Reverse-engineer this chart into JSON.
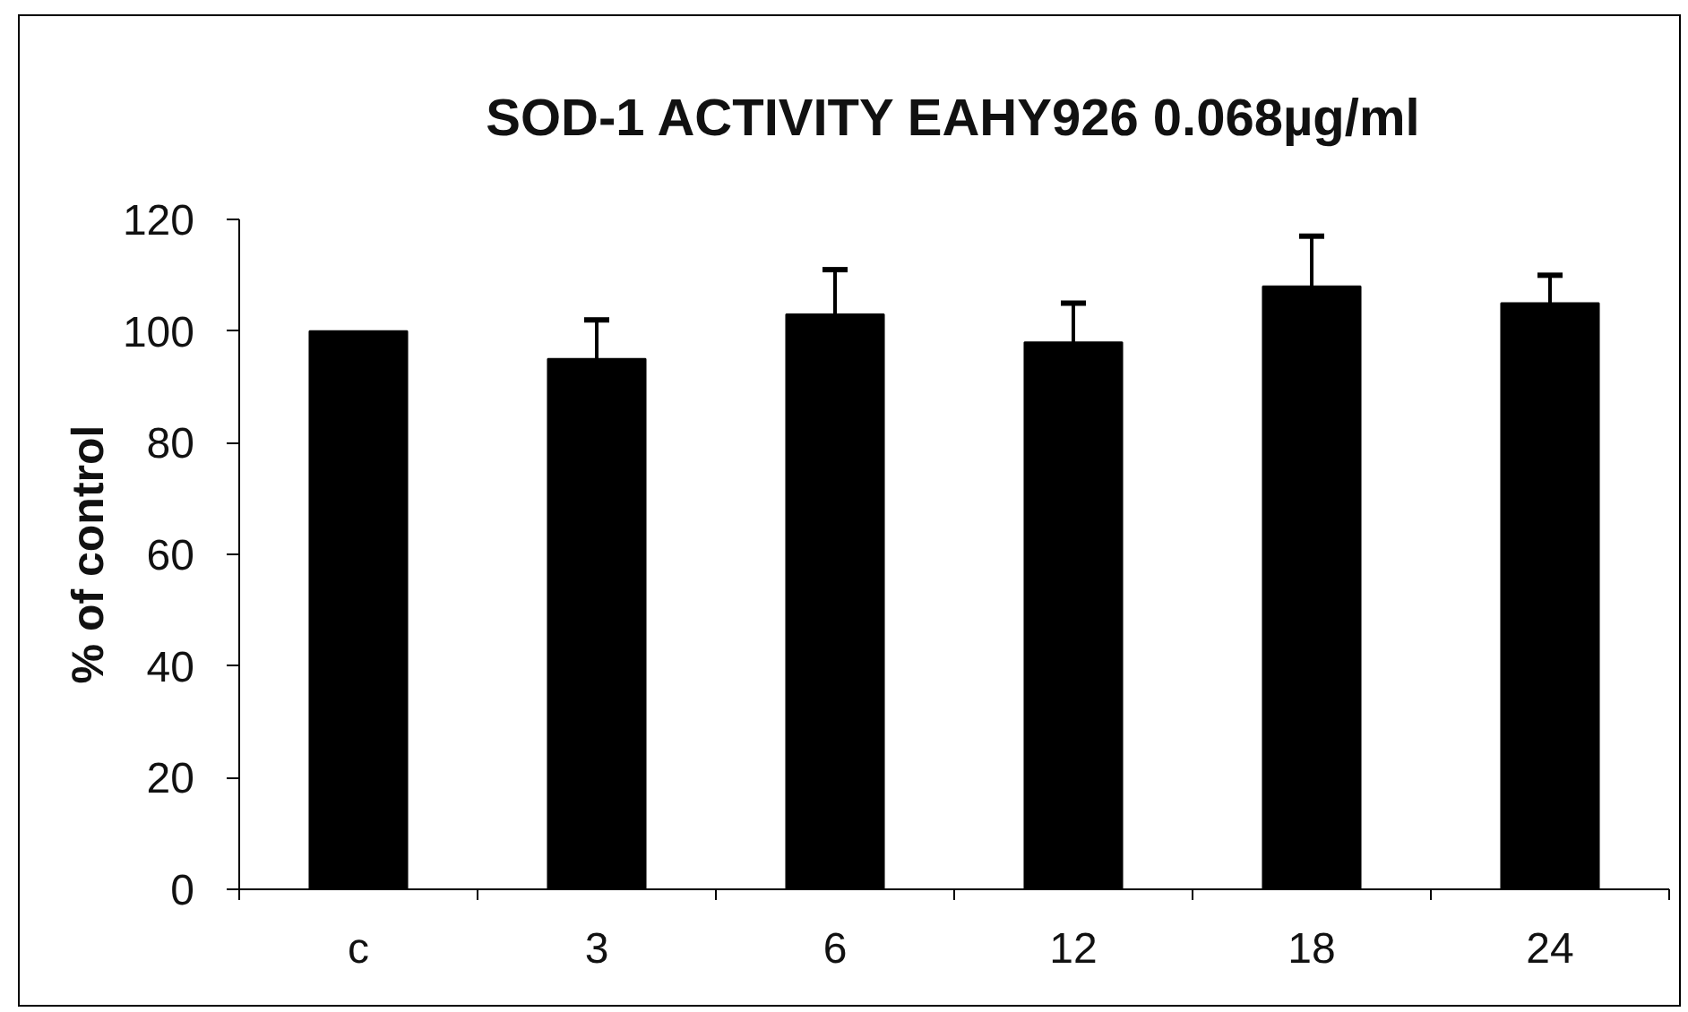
{
  "chart_data": {
    "type": "bar",
    "title": "SOD-1 ACTIVITY EAHY926 0.068µg/ml",
    "ylabel": "% of control",
    "categories": [
      "c",
      "3",
      "6",
      "12",
      "18",
      "24"
    ],
    "values": [
      100,
      95,
      103,
      98,
      108,
      105
    ],
    "color": "#000000",
    "errors": [
      null,
      [
        95,
        102
      ],
      [
        103,
        111
      ],
      [
        98,
        105
      ],
      [
        108,
        117
      ],
      [
        105,
        110
      ]
    ],
    "ylim": [
      0,
      120
    ],
    "yticks": [
      0,
      20,
      40,
      60,
      80,
      100,
      120
    ],
    "grid": false
  }
}
